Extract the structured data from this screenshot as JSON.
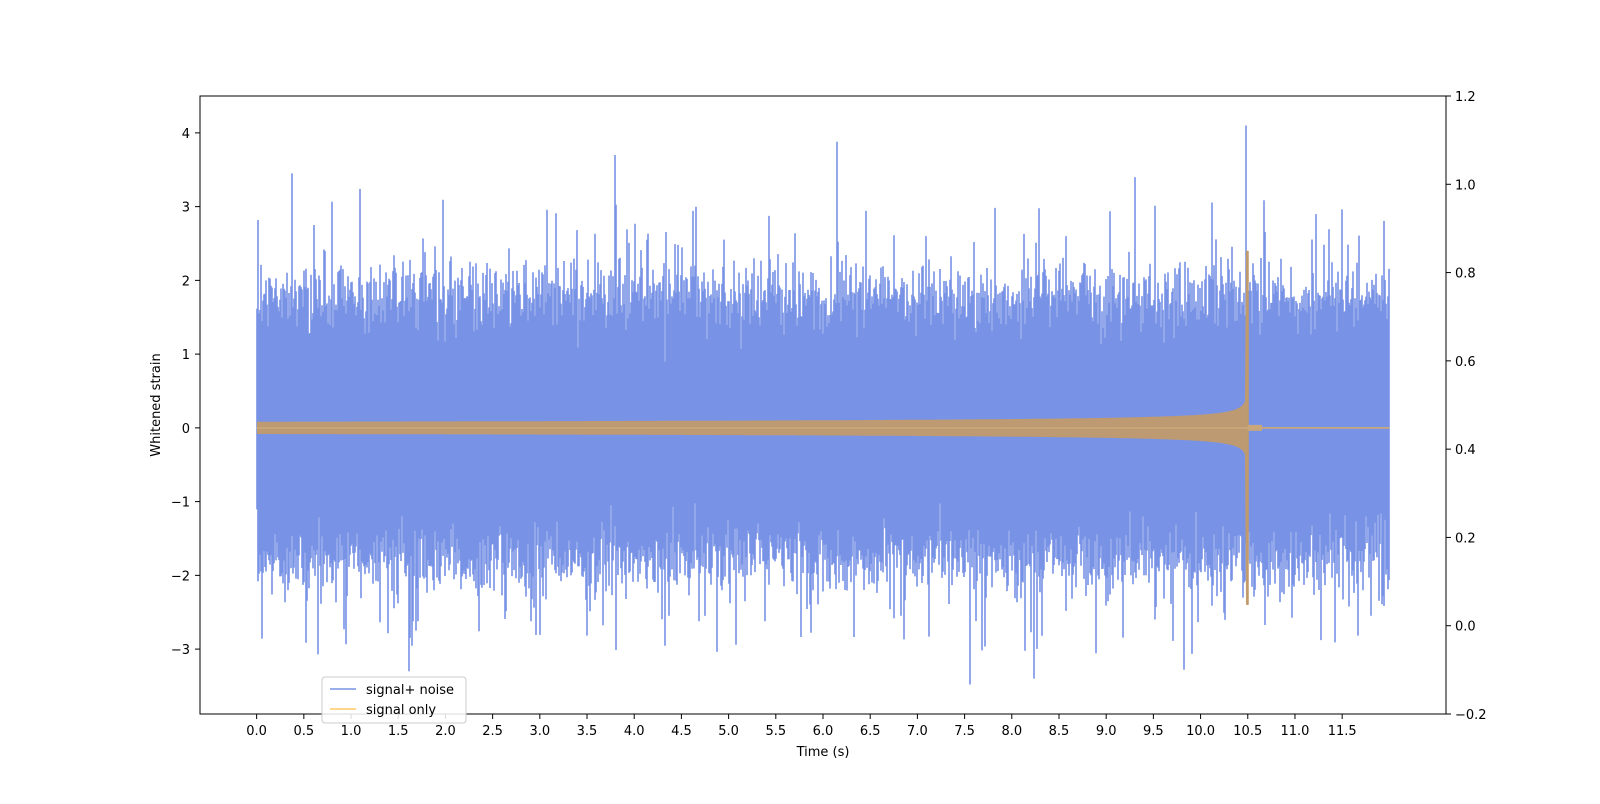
{
  "chart_data": {
    "type": "line",
    "title": "",
    "xlabel": "Time (s)",
    "ylabel": "Whitened strain",
    "xlim": [
      -0.6,
      12.6
    ],
    "ylim": [
      -3.88,
      4.5
    ],
    "ylim_right": [
      -0.2,
      1.2
    ],
    "x_ticks": [
      "0.0",
      "0.5",
      "1.0",
      "1.5",
      "2.0",
      "2.5",
      "3.0",
      "3.5",
      "4.0",
      "4.5",
      "5.0",
      "5.5",
      "6.0",
      "6.5",
      "7.0",
      "7.5",
      "8.0",
      "8.5",
      "9.0",
      "9.5",
      "10.0",
      "10.5",
      "11.0",
      "11.5"
    ],
    "y_ticks_left": [
      "−3",
      "−2",
      "−1",
      "0",
      "1",
      "2",
      "3",
      "4"
    ],
    "y_ticks_right": [
      "−0.2",
      "0.0",
      "0.2",
      "0.4",
      "0.6",
      "0.8",
      "1.0",
      "1.2"
    ],
    "grid": false,
    "legend_position": "lower-left",
    "series": [
      {
        "name": "signal+ noise",
        "color": "#7893e6",
        "x_range": [
          0.0,
          12.0
        ],
        "typical_range": [
          -1.8,
          1.8
        ],
        "peaks": [
          {
            "x": 0.37,
            "y": 3.45
          },
          {
            "x": 1.1,
            "y": 3.24
          },
          {
            "x": 3.8,
            "y": 3.7
          },
          {
            "x": 6.15,
            "y": 3.88
          },
          {
            "x": 9.3,
            "y": 3.4
          },
          {
            "x": 10.48,
            "y": 4.1
          },
          {
            "x": 7.56,
            "y": -3.48
          },
          {
            "x": 8.24,
            "y": -3.4
          },
          {
            "x": 9.82,
            "y": -3.28
          },
          {
            "x": 1.61,
            "y": -3.3
          }
        ]
      },
      {
        "name": "signal only",
        "color": "#ffc966",
        "x_range": [
          0.0,
          12.0
        ],
        "merger_time": 10.5,
        "max_amplitude": 2.4
      }
    ]
  }
}
